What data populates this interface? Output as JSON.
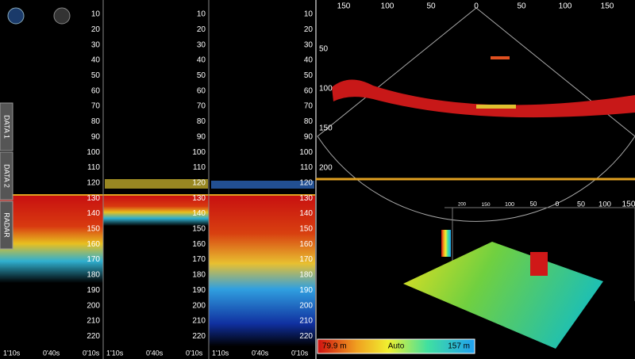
{
  "depth_panels": [
    {
      "depth_labels": [
        10,
        20,
        30,
        40,
        50,
        60,
        70,
        80,
        90,
        100,
        110,
        120,
        130,
        140,
        150,
        160,
        170,
        180,
        190,
        200,
        210,
        220
      ],
      "time_labels": [
        "1'10s",
        "0'40s",
        "0'10s"
      ]
    },
    {
      "depth_labels": [
        10,
        20,
        30,
        40,
        50,
        60,
        70,
        80,
        90,
        100,
        110,
        120,
        130,
        140,
        150,
        160,
        170,
        180,
        190,
        200,
        210,
        220
      ],
      "time_labels": [
        "1'10s",
        "0'40s",
        "0'10s"
      ]
    },
    {
      "depth_labels": [
        10,
        20,
        30,
        40,
        50,
        60,
        70,
        80,
        90,
        100,
        110,
        120,
        130,
        140,
        150,
        160,
        170,
        180,
        190,
        200,
        210,
        220
      ],
      "time_labels": [
        "1'10s",
        "0'40s",
        "0'10s"
      ]
    }
  ],
  "side_tabs": [
    "DATA 1",
    "DATA 2",
    "RADAR"
  ],
  "sonar": {
    "top_scale": [
      "150",
      "100",
      "50",
      "0",
      "50",
      "100",
      "150"
    ],
    "side_scale": [
      "50",
      "100",
      "150",
      "200"
    ]
  },
  "view_3d": {
    "scale": [
      "200",
      "150",
      "100",
      "50",
      "0",
      "50",
      "100",
      "150"
    ]
  },
  "color_bar": {
    "min": "79.9 m",
    "mode": "Auto",
    "max": "157 m"
  }
}
